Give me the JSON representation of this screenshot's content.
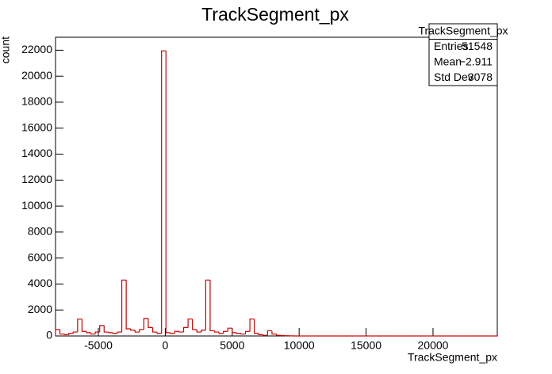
{
  "chart_data": {
    "type": "histogram",
    "title": "TrackSegment_px",
    "xlabel": "TrackSegment_px",
    "ylabel": "count",
    "bins": [
      -8200,
      -7870,
      -7540,
      -7210,
      -6880,
      -6550,
      -6220,
      -5890,
      -5560,
      -5230,
      -4900,
      -4570,
      -4240,
      -3910,
      -3580,
      -3250,
      -2920,
      -2590,
      -2260,
      -1930,
      -1600,
      -1270,
      -940,
      -610,
      -280,
      50,
      380,
      710,
      1040,
      1370,
      1700,
      2030,
      2360,
      2690,
      3020,
      3350,
      3680,
      4010,
      4340,
      4670,
      5000,
      5330,
      5660,
      5990,
      6320,
      6650,
      6980,
      7310,
      7640,
      7970,
      8300,
      8630,
      8960,
      9290,
      9620,
      9950,
      10280,
      10610,
      10940,
      11270,
      11600,
      11930,
      12260,
      12590,
      12920,
      13250,
      13580,
      13910,
      14240,
      14570,
      14900,
      15230,
      15560,
      15890,
      16220,
      16550,
      16880,
      17210,
      17540,
      17870,
      18200,
      18530,
      18860,
      19190,
      19520,
      19850,
      20180,
      20510,
      20840,
      21170,
      21500,
      21830,
      22160,
      22490,
      22820,
      23150,
      23480,
      23810,
      24140,
      24470,
      24800
    ],
    "values": [
      500,
      150,
      100,
      200,
      300,
      1300,
      350,
      250,
      150,
      300,
      800,
      300,
      250,
      200,
      300,
      4300,
      550,
      450,
      300,
      500,
      1350,
      650,
      300,
      200,
      21950,
      250,
      200,
      350,
      300,
      650,
      1300,
      500,
      300,
      450,
      4300,
      400,
      300,
      200,
      350,
      600,
      250,
      200,
      150,
      350,
      1300,
      200,
      100,
      50,
      400,
      150,
      50,
      30,
      20,
      10,
      0,
      0,
      0,
      0,
      0,
      0,
      0,
      0,
      0,
      0,
      0,
      0,
      0,
      0,
      0,
      0,
      0,
      0,
      0,
      0,
      0,
      0,
      0,
      0,
      0,
      0,
      0,
      0,
      0,
      0,
      0,
      0,
      0,
      0,
      0,
      0,
      0,
      0,
      0,
      0,
      0,
      0,
      0,
      0,
      0,
      0
    ],
    "color": "#cc0000",
    "xlim": [
      -8200,
      24800
    ],
    "xticks": [
      -5000,
      0,
      5000,
      10000,
      15000,
      20000
    ],
    "ylim": [
      0,
      23000
    ],
    "yticks": [
      0,
      2000,
      4000,
      6000,
      8000,
      10000,
      12000,
      14000,
      16000,
      18000,
      20000,
      22000
    ],
    "stats": {
      "title": "TrackSegment_px",
      "rows": [
        [
          "Entries",
          "51548"
        ],
        [
          "Mean",
          "−2.911"
        ],
        [
          "Std Dev",
          "3078"
        ]
      ]
    }
  }
}
